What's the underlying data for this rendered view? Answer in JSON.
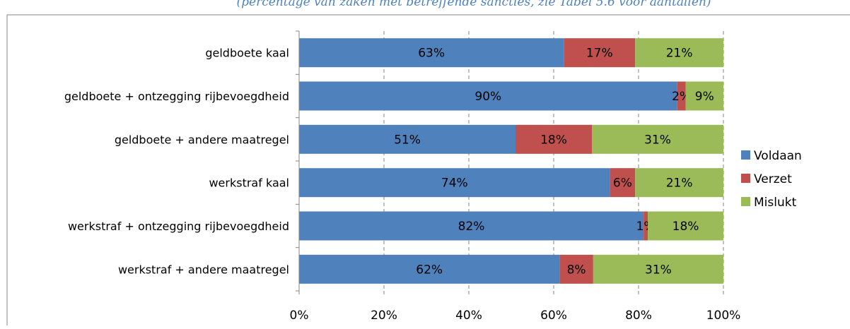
{
  "caption": "(percentage van zaken met betreffende sancties, zie Tabel 5.6 voor aantallen)",
  "chart_data": {
    "type": "bar",
    "orientation": "horizontal",
    "stacked": true,
    "percent": true,
    "categories": [
      "geldboete kaal",
      "geldboete + ontzegging rijbevoegdheid",
      "geldboete + andere maatregel",
      "werkstraf kaal",
      "werkstraf + ontzegging rijbevoegdheid",
      "werkstraf + andere maatregel"
    ],
    "series": [
      {
        "name": "Voldaan",
        "color": "#4f81bd",
        "values": [
          63,
          90,
          51,
          74,
          82,
          62
        ],
        "labels": [
          "63%",
          "90%",
          "51%",
          "74%",
          "82%",
          "62%"
        ]
      },
      {
        "name": "Verzet",
        "color": "#c0504d",
        "values": [
          17,
          2,
          18,
          6,
          1,
          8
        ],
        "labels": [
          "17%",
          "2%",
          "18%",
          "6%",
          "1%",
          "8%"
        ]
      },
      {
        "name": "Mislukt",
        "color": "#9bbb59",
        "values": [
          21,
          9,
          31,
          21,
          18,
          31
        ],
        "labels": [
          "21%",
          "9%",
          "31%",
          "21%",
          "18%",
          "31%"
        ]
      }
    ],
    "xlim": [
      0,
      100
    ],
    "xticks": [
      "0%",
      "20%",
      "40%",
      "60%",
      "80%",
      "100%"
    ],
    "grid": true,
    "legend_position": "right"
  }
}
